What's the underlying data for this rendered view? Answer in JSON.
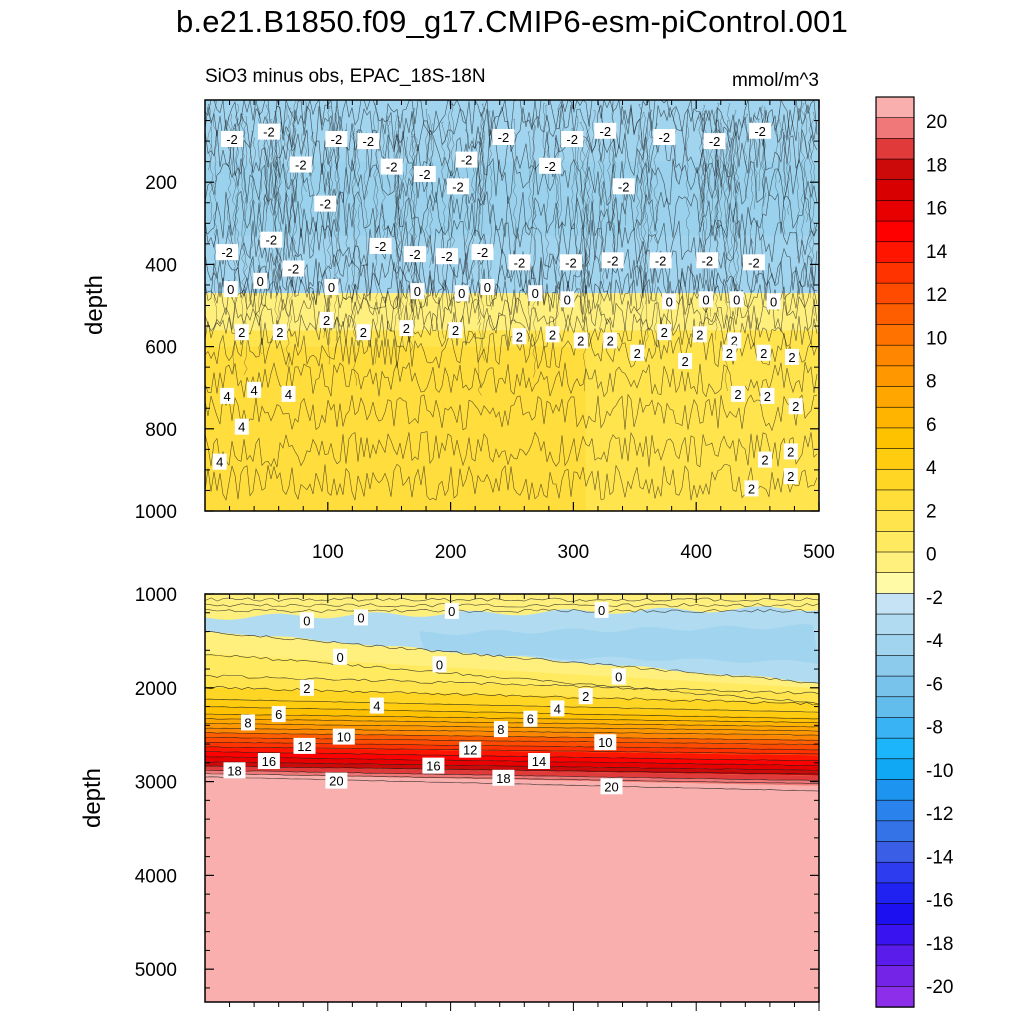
{
  "title": "b.e21.B1850.f09_g17.CMIP6-esm-piControl.001",
  "chart_data": [
    {
      "type": "contour",
      "panel": "upper",
      "subtitle_left": "SiO3 minus obs, EPAC_18S-18N",
      "subtitle_right": "mmol/m^3",
      "ylabel": "depth",
      "xlabel": "",
      "xlim": [
        0,
        500
      ],
      "ylim": [
        1000,
        0
      ],
      "xticks": [
        100,
        200,
        300,
        400,
        500
      ],
      "xtick_labels": [
        "100",
        "200",
        "300",
        "400",
        "500"
      ],
      "yticks": [
        200,
        400,
        600,
        800,
        1000
      ],
      "ytick_labels": [
        "200",
        "400",
        "600",
        "800",
        "1000"
      ],
      "bands": [
        {
          "depth_top": 0,
          "depth_bottom": 470,
          "value": -2
        },
        {
          "depth_top": 470,
          "depth_bottom": 560,
          "value": 1
        },
        {
          "depth_top": 560,
          "depth_bottom": 1000,
          "value": 3
        }
      ],
      "contour_labels": [
        {
          "text": "-2",
          "x": 22,
          "depth": 95
        },
        {
          "text": "-2",
          "x": 52,
          "depth": 77
        },
        {
          "text": "-2",
          "x": 107,
          "depth": 95
        },
        {
          "text": "-2",
          "x": 133,
          "depth": 100
        },
        {
          "text": "-2",
          "x": 152,
          "depth": 162
        },
        {
          "text": "-2",
          "x": 179,
          "depth": 180
        },
        {
          "text": "-2",
          "x": 78,
          "depth": 157
        },
        {
          "text": "-2",
          "x": 98,
          "depth": 252
        },
        {
          "text": "-2",
          "x": 213,
          "depth": 145
        },
        {
          "text": "-2",
          "x": 206,
          "depth": 210
        },
        {
          "text": "-2",
          "x": 243,
          "depth": 90
        },
        {
          "text": "-2",
          "x": 281,
          "depth": 160
        },
        {
          "text": "-2",
          "x": 299,
          "depth": 95
        },
        {
          "text": "-2",
          "x": 326,
          "depth": 75
        },
        {
          "text": "-2",
          "x": 341,
          "depth": 210
        },
        {
          "text": "-2",
          "x": 374,
          "depth": 90
        },
        {
          "text": "-2",
          "x": 415,
          "depth": 100
        },
        {
          "text": "-2",
          "x": 452,
          "depth": 75
        },
        {
          "text": "-2",
          "x": 18,
          "depth": 370
        },
        {
          "text": "-2",
          "x": 54,
          "depth": 340
        },
        {
          "text": "-2",
          "x": 72,
          "depth": 410
        },
        {
          "text": "-2",
          "x": 143,
          "depth": 355
        },
        {
          "text": "-2",
          "x": 171,
          "depth": 375
        },
        {
          "text": "-2",
          "x": 197,
          "depth": 380
        },
        {
          "text": "-2",
          "x": 226,
          "depth": 370
        },
        {
          "text": "-2",
          "x": 256,
          "depth": 395
        },
        {
          "text": "-2",
          "x": 298,
          "depth": 395
        },
        {
          "text": "-2",
          "x": 332,
          "depth": 390
        },
        {
          "text": "-2",
          "x": 371,
          "depth": 390
        },
        {
          "text": "-2",
          "x": 409,
          "depth": 390
        },
        {
          "text": "-2",
          "x": 447,
          "depth": 395
        },
        {
          "text": "0",
          "x": 21,
          "depth": 460
        },
        {
          "text": "0",
          "x": 45,
          "depth": 440
        },
        {
          "text": "0",
          "x": 103,
          "depth": 455
        },
        {
          "text": "0",
          "x": 173,
          "depth": 465
        },
        {
          "text": "0",
          "x": 209,
          "depth": 470
        },
        {
          "text": "0",
          "x": 230,
          "depth": 455
        },
        {
          "text": "0",
          "x": 269,
          "depth": 470
        },
        {
          "text": "0",
          "x": 295,
          "depth": 485
        },
        {
          "text": "0",
          "x": 378,
          "depth": 490
        },
        {
          "text": "0",
          "x": 408,
          "depth": 485
        },
        {
          "text": "0",
          "x": 433,
          "depth": 485
        },
        {
          "text": "0",
          "x": 463,
          "depth": 490
        },
        {
          "text": "2",
          "x": 30,
          "depth": 565
        },
        {
          "text": "2",
          "x": 61,
          "depth": 565
        },
        {
          "text": "2",
          "x": 99,
          "depth": 535
        },
        {
          "text": "2",
          "x": 129,
          "depth": 565
        },
        {
          "text": "2",
          "x": 164,
          "depth": 555
        },
        {
          "text": "2",
          "x": 204,
          "depth": 560
        },
        {
          "text": "2",
          "x": 256,
          "depth": 575
        },
        {
          "text": "2",
          "x": 283,
          "depth": 570
        },
        {
          "text": "2",
          "x": 306,
          "depth": 585
        },
        {
          "text": "2",
          "x": 330,
          "depth": 585
        },
        {
          "text": "2",
          "x": 352,
          "depth": 615
        },
        {
          "text": "2",
          "x": 374,
          "depth": 565
        },
        {
          "text": "2",
          "x": 403,
          "depth": 570
        },
        {
          "text": "2",
          "x": 431,
          "depth": 585
        },
        {
          "text": "2",
          "x": 391,
          "depth": 635
        },
        {
          "text": "2",
          "x": 427,
          "depth": 615
        },
        {
          "text": "2",
          "x": 455,
          "depth": 615
        },
        {
          "text": "2",
          "x": 478,
          "depth": 625
        },
        {
          "text": "2",
          "x": 434,
          "depth": 715
        },
        {
          "text": "2",
          "x": 458,
          "depth": 720
        },
        {
          "text": "2",
          "x": 481,
          "depth": 745
        },
        {
          "text": "2",
          "x": 456,
          "depth": 875
        },
        {
          "text": "2",
          "x": 477,
          "depth": 855
        },
        {
          "text": "2",
          "x": 477,
          "depth": 915
        },
        {
          "text": "2",
          "x": 445,
          "depth": 945
        },
        {
          "text": "4",
          "x": 18,
          "depth": 720
        },
        {
          "text": "4",
          "x": 40,
          "depth": 705
        },
        {
          "text": "4",
          "x": 68,
          "depth": 715
        },
        {
          "text": "4",
          "x": 30,
          "depth": 795
        },
        {
          "text": "4",
          "x": 12,
          "depth": 880
        }
      ]
    },
    {
      "type": "contour",
      "panel": "lower",
      "ylabel": "depth",
      "xlabel": "",
      "xlim": [
        0,
        500
      ],
      "ylim": [
        5350,
        1000
      ],
      "yticks": [
        1000,
        2000,
        3000,
        4000,
        5000
      ],
      "ytick_labels": [
        "1000",
        "2000",
        "3000",
        "4000",
        "5000"
      ],
      "levels": [
        {
          "value": 0,
          "depth_left": 1400,
          "depth_right": 1950
        },
        {
          "value": 2,
          "depth_left": 1870,
          "depth_right": 2060
        },
        {
          "value": 4,
          "depth_left": 2120,
          "depth_right": 2260
        },
        {
          "value": 6,
          "depth_left": 2280,
          "depth_right": 2370
        },
        {
          "value": 8,
          "depth_left": 2380,
          "depth_right": 2460
        },
        {
          "value": 10,
          "depth_left": 2480,
          "depth_right": 2560
        },
        {
          "value": 12,
          "depth_left": 2580,
          "depth_right": 2660
        },
        {
          "value": 14,
          "depth_left": 2680,
          "depth_right": 2780
        },
        {
          "value": 16,
          "depth_left": 2790,
          "depth_right": 2880
        },
        {
          "value": 18,
          "depth_left": 2880,
          "depth_right": 2990
        },
        {
          "value": 20,
          "depth_left": 2950,
          "depth_right": 3100
        }
      ],
      "contour_labels": [
        {
          "text": "0",
          "x": 83,
          "depth": 1280
        },
        {
          "text": "0",
          "x": 127,
          "depth": 1250
        },
        {
          "text": "0",
          "x": 201,
          "depth": 1180
        },
        {
          "text": "0",
          "x": 323,
          "depth": 1170
        },
        {
          "text": "0",
          "x": 110,
          "depth": 1670
        },
        {
          "text": "0",
          "x": 191,
          "depth": 1750
        },
        {
          "text": "0",
          "x": 337,
          "depth": 1880
        },
        {
          "text": "2",
          "x": 83,
          "depth": 2000
        },
        {
          "text": "2",
          "x": 310,
          "depth": 2090
        },
        {
          "text": "4",
          "x": 140,
          "depth": 2190
        },
        {
          "text": "4",
          "x": 287,
          "depth": 2220
        },
        {
          "text": "6",
          "x": 60,
          "depth": 2280
        },
        {
          "text": "6",
          "x": 265,
          "depth": 2330
        },
        {
          "text": "8",
          "x": 35,
          "depth": 2370
        },
        {
          "text": "8",
          "x": 241,
          "depth": 2440
        },
        {
          "text": "10",
          "x": 113,
          "depth": 2520
        },
        {
          "text": "10",
          "x": 326,
          "depth": 2580
        },
        {
          "text": "12",
          "x": 81,
          "depth": 2620
        },
        {
          "text": "12",
          "x": 216,
          "depth": 2660
        },
        {
          "text": "14",
          "x": 272,
          "depth": 2780
        },
        {
          "text": "16",
          "x": 52,
          "depth": 2780
        },
        {
          "text": "16",
          "x": 186,
          "depth": 2830
        },
        {
          "text": "18",
          "x": 24,
          "depth": 2880
        },
        {
          "text": "18",
          "x": 243,
          "depth": 2960
        },
        {
          "text": "20",
          "x": 107,
          "depth": 2990
        },
        {
          "text": "20",
          "x": 331,
          "depth": 3050
        }
      ]
    },
    {
      "type": "colorbar",
      "unit": "mmol/m^3",
      "levels": [
        -20,
        -19,
        -18,
        -17,
        -16,
        -15,
        -14,
        -13,
        -12,
        -11,
        -10,
        -9,
        -8,
        -7,
        -6,
        -5,
        -4,
        -3,
        -2,
        -1,
        0,
        1,
        2,
        3,
        4,
        5,
        6,
        7,
        8,
        9,
        10,
        11,
        12,
        13,
        14,
        15,
        16,
        17,
        18,
        19,
        20
      ],
      "tick_labels": [
        "20",
        "18",
        "16",
        "14",
        "12",
        "10",
        "8",
        "6",
        "4",
        "2",
        "0",
        "-2",
        "-4",
        "-6",
        "-8",
        "-10",
        "-12",
        "-14",
        "-16",
        "-18",
        "-20"
      ],
      "colors_top_to_bottom": [
        "#f8afae",
        "#f07878",
        "#e03a3a",
        "#cc0a0a",
        "#d80000",
        "#e80000",
        "#ff0000",
        "#ff1500",
        "#ff3300",
        "#ff4b00",
        "#ff5e00",
        "#ff7200",
        "#ff8600",
        "#ff9800",
        "#ffa600",
        "#ffb400",
        "#ffc200",
        "#ffcc10",
        "#ffd624",
        "#ffde3a",
        "#ffe44e",
        "#ffea60",
        "#fff07e",
        "#fffaa6",
        "#c5e3f4",
        "#b1dbf1",
        "#a0d4ef",
        "#8dcbed",
        "#78c3ec",
        "#62bcec",
        "#3ab3f5",
        "#1cb4fa",
        "#10a8f5",
        "#1c94f0",
        "#2a82ec",
        "#3472e8",
        "#3a5ee6",
        "#2c3cee",
        "#2022f2",
        "#1d10f0",
        "#3a14f0",
        "#5a1cea",
        "#7424e6",
        "#8c2eea"
      ]
    }
  ]
}
